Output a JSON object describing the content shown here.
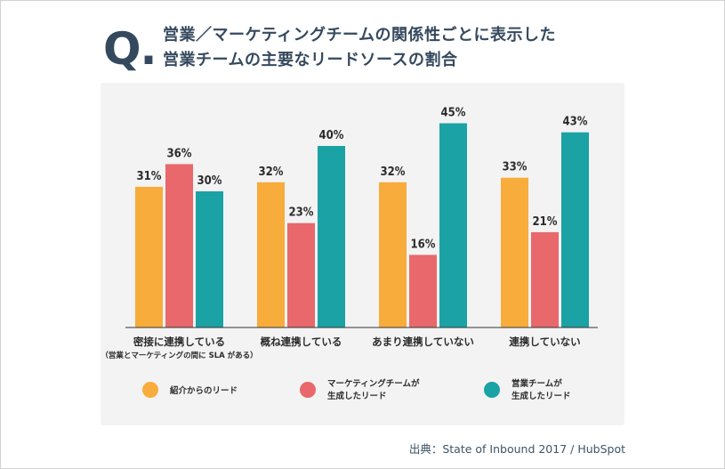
{
  "title": {
    "q_mark": "Q.",
    "line1": "営業／マーケティングチームの関係性ごとに表示した",
    "line2": "営業チームの主要なリードソースの割合"
  },
  "source": "出典：State of Inbound 2017 / HubSpot",
  "chart_data": {
    "type": "bar",
    "categories": [
      {
        "label": "密接に連携している",
        "sublabel": "（営業とマーケティングの間に SLA がある）"
      },
      {
        "label": "概ね連携している",
        "sublabel": ""
      },
      {
        "label": "あまり連携していない",
        "sublabel": ""
      },
      {
        "label": "連携していない",
        "sublabel": ""
      }
    ],
    "series": [
      {
        "name": "紹介からのリード",
        "name_lines": [
          "紹介からのリード"
        ],
        "color": "#f8ac3b",
        "values": [
          31,
          32,
          32,
          33
        ]
      },
      {
        "name": "マーケティングチームが生成したリード",
        "name_lines": [
          "マーケティングチームが",
          "生成したリード"
        ],
        "color": "#e8686b",
        "values": [
          36,
          23,
          16,
          21
        ]
      },
      {
        "name": "営業チームが生成したリード",
        "name_lines": [
          "営業チームが",
          "生成したリード"
        ],
        "color": "#1aa2a4",
        "values": [
          30,
          40,
          45,
          43
        ]
      }
    ],
    "value_suffix": "%",
    "ylim": [
      0,
      50
    ],
    "grid": false,
    "legend_position": "bottom"
  }
}
